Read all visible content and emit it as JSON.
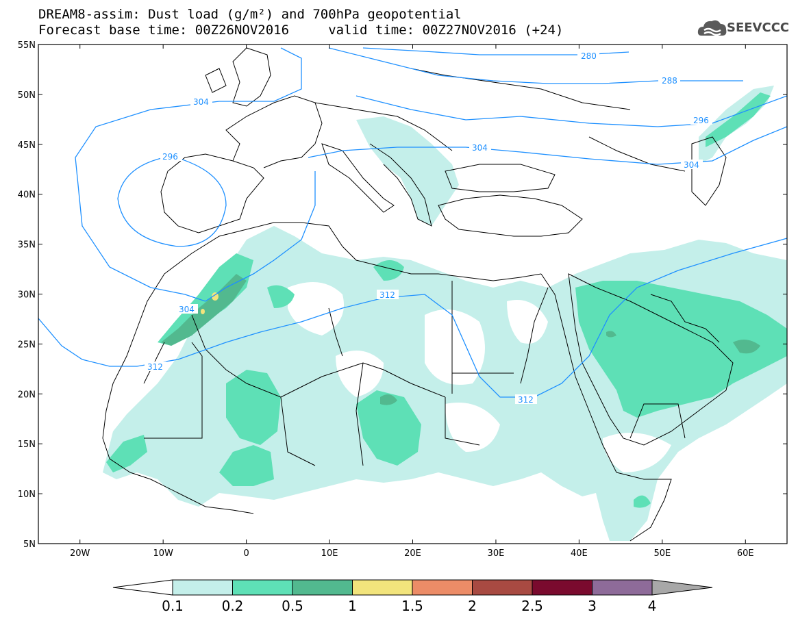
{
  "header": {
    "line1": "DREAM8-assim: Dust load (g/m²) and 700hPa geopotential",
    "line2": "Forecast base time: 00Z26NOV2016     valid time: 00Z27NOV2016 (+24)"
  },
  "logo": {
    "text": "SEEVCCC",
    "icon": "cloud-icon"
  },
  "map": {
    "lon_range": [
      -25,
      65
    ],
    "lat_range": [
      5,
      55
    ],
    "lat_ticks": [
      "55N",
      "50N",
      "45N",
      "40N",
      "35N",
      "30N",
      "25N",
      "20N",
      "15N",
      "10N",
      "5N"
    ],
    "lon_ticks": [
      "20W",
      "10W",
      "0",
      "10E",
      "20E",
      "30E",
      "40E",
      "50E",
      "60E"
    ],
    "geopotential_labels": [
      "280",
      "288",
      "296",
      "304",
      "304",
      "296",
      "304",
      "312",
      "304",
      "312",
      "312"
    ]
  },
  "colorbar": {
    "labels": [
      "0.1",
      "0.2",
      "0.5",
      "1",
      "1.5",
      "2",
      "2.5",
      "3",
      "4"
    ],
    "colors": [
      "#c4efea",
      "#5ee0b6",
      "#52b98f",
      "#f2e47c",
      "#ec8c67",
      "#a84a42",
      "#7a0a2e",
      "#8e6b99",
      "#a8a8a8"
    ]
  },
  "colors": {
    "contour": "#1e90ff",
    "border": "#000000",
    "dust_low": "#c4efea",
    "dust_mid": "#5ee0b6",
    "dust_high": "#52b98f",
    "dust_peak": "#f2e47c"
  }
}
